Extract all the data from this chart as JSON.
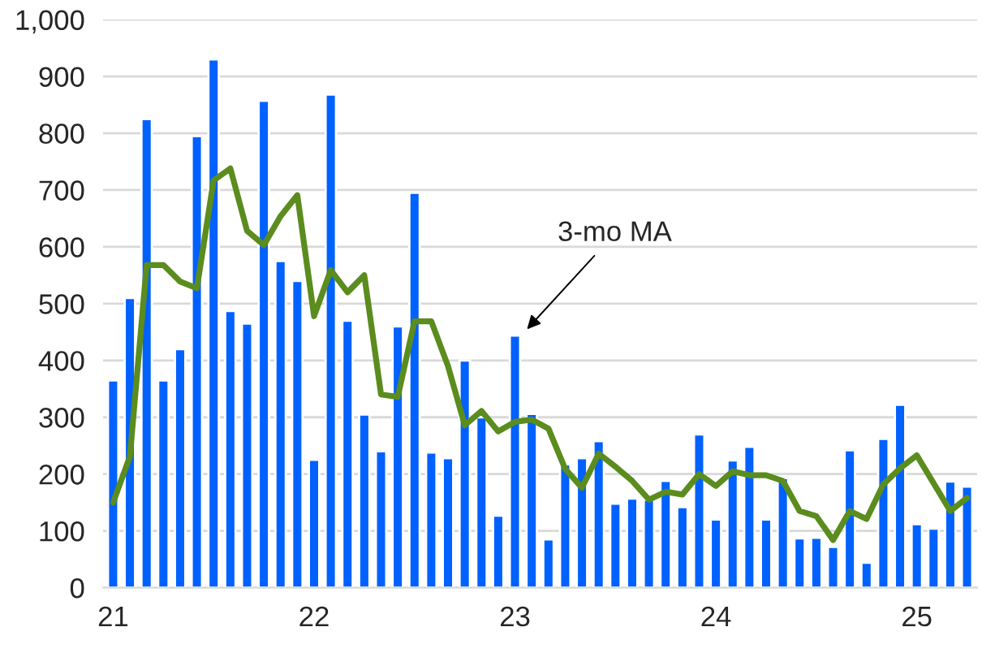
{
  "chart_data": {
    "type": "bar",
    "categories": [
      "21",
      null,
      null,
      null,
      null,
      null,
      null,
      null,
      null,
      null,
      null,
      null,
      "22",
      null,
      null,
      null,
      null,
      null,
      null,
      null,
      null,
      null,
      null,
      null,
      "23",
      null,
      null,
      null,
      null,
      null,
      null,
      null,
      null,
      null,
      null,
      null,
      "24",
      null,
      null,
      null,
      null,
      null,
      null,
      null,
      null,
      null,
      null,
      null,
      "25",
      null,
      null,
      null
    ],
    "series": [
      {
        "color": "#0061ff",
        "values": [
          365,
          510,
          825,
          365,
          420,
          795,
          930,
          487,
          465,
          857,
          575,
          540,
          225,
          868,
          470,
          305,
          240,
          460,
          695,
          238,
          228,
          400,
          300,
          127,
          444,
          306,
          85,
          217,
          228,
          258,
          148,
          157,
          155,
          188,
          142,
          270,
          120,
          224,
          248,
          120,
          193,
          87,
          88,
          72,
          242,
          44,
          262,
          322,
          112,
          104,
          187,
          178
        ]
      },
      {
        "type": "line",
        "color": "#5b8c1e",
        "values": [
          150,
          231,
          568,
          568,
          539,
          527,
          717,
          738,
          628,
          603,
          654,
          691,
          478,
          559,
          520,
          550,
          340,
          336,
          469,
          469,
          390,
          286,
          311,
          275,
          292,
          296,
          280,
          209,
          176,
          236,
          213,
          188,
          155,
          169,
          164,
          200,
          179,
          205,
          198,
          198,
          188,
          135,
          126,
          84,
          135,
          121,
          182,
          210,
          233,
          184,
          135,
          158
        ]
      }
    ],
    "ylim": [
      0,
      1000
    ],
    "yticks": [
      0,
      100,
      200,
      300,
      400,
      500,
      600,
      700,
      800,
      900,
      {
        "value": 1000,
        "label": "1,000"
      }
    ],
    "grid": "y",
    "annotations": [
      "3-mo MA"
    ]
  }
}
